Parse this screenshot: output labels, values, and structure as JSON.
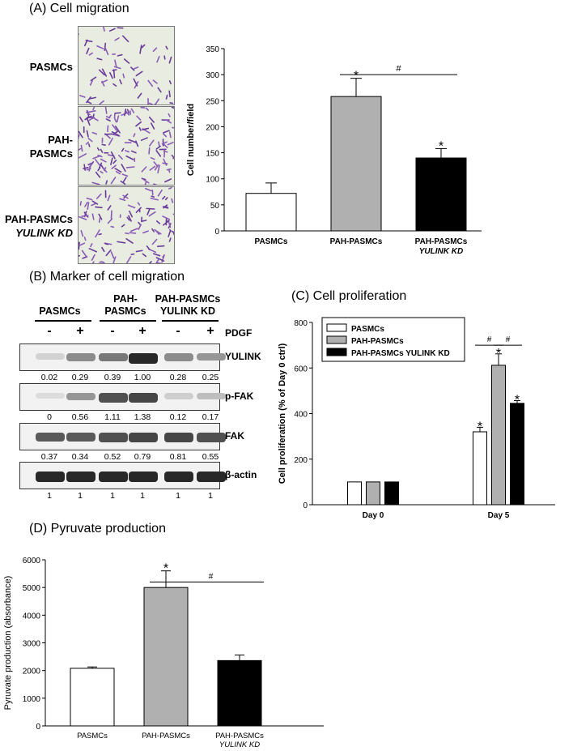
{
  "panelA": {
    "title": "(A)  Cell migration",
    "images": [
      {
        "label_lines": [
          "PASMCs"
        ]
      },
      {
        "label_lines": [
          "PAH-",
          "PASMCs"
        ]
      },
      {
        "label_lines": [
          "PAH-PASMCs",
          "YULINK KD"
        ]
      }
    ]
  },
  "panelB": {
    "title": "(B)  Marker of cell migration",
    "groups": [
      {
        "lines": [
          "PASMCs"
        ]
      },
      {
        "lines": [
          "PAH-",
          "PASMCs"
        ]
      },
      {
        "lines": [
          "PAH-PASMCs",
          "YULINK KD"
        ]
      }
    ],
    "lane_signs": [
      "-",
      "+",
      "-",
      "+",
      "-",
      "+"
    ],
    "treatment_label": "PDGF",
    "blots": [
      {
        "label": "YULINK",
        "band_intensity": [
          0.1,
          0.45,
          0.55,
          0.95,
          0.45,
          0.4
        ],
        "quant": [
          "0.02",
          "0.29",
          "0.39",
          "1.00",
          "0.28",
          "0.25"
        ]
      },
      {
        "label": "p-FAK",
        "band_intensity": [
          0.05,
          0.4,
          0.75,
          0.8,
          0.12,
          0.2
        ],
        "quant": [
          "0",
          "0.56",
          "1.11",
          "1.38",
          "0.12",
          "0.17"
        ]
      },
      {
        "label": "FAK",
        "band_intensity": [
          0.7,
          0.7,
          0.75,
          0.8,
          0.8,
          0.75
        ],
        "quant": [
          "0.37",
          "0.34",
          "0.52",
          "0.79",
          "0.81",
          "0.55"
        ]
      },
      {
        "label": "β-actin",
        "band_intensity": [
          0.95,
          0.95,
          0.95,
          0.95,
          0.95,
          0.95
        ],
        "quant": [
          "1",
          "1",
          "1",
          "1",
          "1",
          "1"
        ]
      }
    ]
  },
  "panelC": {
    "title": "(C)  Cell proliferation"
  },
  "panelD": {
    "title": "(D)  Pyruvate production"
  },
  "colors": {
    "pasmc": "#ffffff",
    "pah": "#b0b0b0",
    "kd": "#000000"
  },
  "chart_data": [
    {
      "id": "A",
      "type": "bar",
      "categories": [
        [
          "PASMCs"
        ],
        [
          "PAH-PASMCs"
        ],
        [
          "PAH-PASMCs",
          "YULINK KD"
        ]
      ],
      "values": [
        72,
        258,
        140
      ],
      "errors": [
        20,
        35,
        18
      ],
      "ylabel": "Cell number/field",
      "ylim": [
        0,
        350
      ],
      "yticks": [
        0,
        50,
        100,
        150,
        200,
        250,
        300,
        350
      ],
      "stars": [
        false,
        true,
        true
      ],
      "comparisons": [
        {
          "from": 1,
          "to": 2,
          "label": "#"
        }
      ]
    },
    {
      "id": "C",
      "type": "bar",
      "x": [
        "Day 0",
        "Day 5"
      ],
      "series": [
        {
          "name": "PASMCs",
          "values": [
            100,
            320
          ],
          "errors": [
            0,
            20
          ]
        },
        {
          "name": "PAH-PASMCs",
          "values": [
            100,
            612
          ],
          "errors": [
            0,
            50
          ]
        },
        {
          "name": "PAH-PASMCs YULINK KD",
          "values": [
            100,
            445
          ],
          "errors": [
            0,
            12
          ]
        }
      ],
      "ylabel": "Cell proliferation (% of Day 0 ctrl)",
      "ylim": [
        0,
        800
      ],
      "yticks": [
        0,
        200,
        400,
        600,
        800
      ],
      "stars_day5": [
        true,
        true,
        true
      ],
      "comparisons": [
        {
          "from": 0,
          "to": 1,
          "label": "#"
        },
        {
          "from": 1,
          "to": 2,
          "label": "#"
        }
      ],
      "legend": "top-left"
    },
    {
      "id": "D",
      "type": "bar",
      "categories": [
        [
          "PASMCs"
        ],
        [
          "PAH-PASMCs"
        ],
        [
          "PAH-PASMCs",
          "YULINK KD"
        ]
      ],
      "values": [
        2080,
        5000,
        2360
      ],
      "errors": [
        50,
        600,
        200
      ],
      "ylabel": "Pyruvate production (absorbance)",
      "ylim": [
        0,
        6000
      ],
      "yticks": [
        0,
        1000,
        2000,
        3000,
        4000,
        5000,
        6000
      ],
      "stars": [
        false,
        true,
        false
      ],
      "comparisons": [
        {
          "from": 1,
          "to": 2,
          "label": "#"
        }
      ]
    }
  ]
}
